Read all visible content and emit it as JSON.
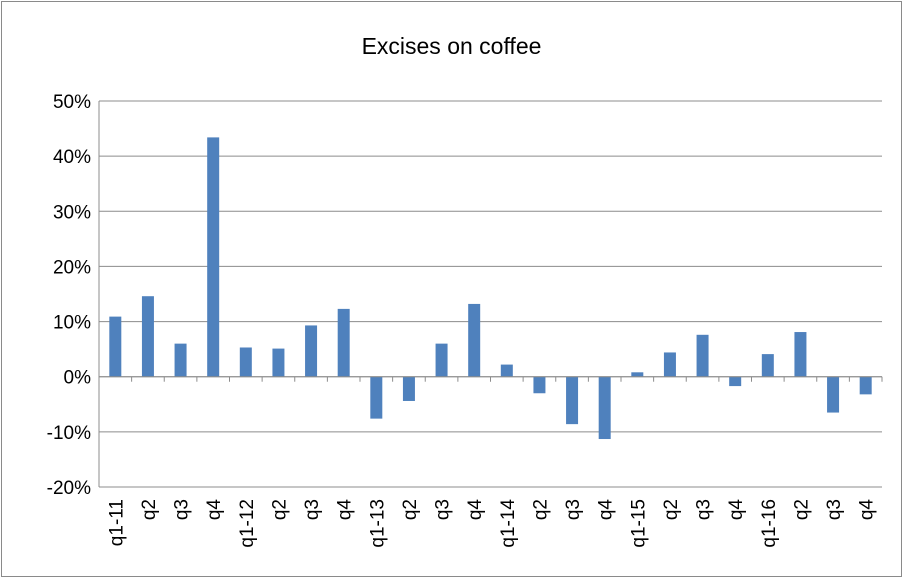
{
  "chart_data": {
    "type": "bar",
    "title": "Excises on coffee",
    "xlabel": "",
    "ylabel": "",
    "ylim": [
      -0.2,
      0.5
    ],
    "yticks": [
      -0.2,
      -0.1,
      0.0,
      0.1,
      0.2,
      0.3,
      0.4,
      0.5
    ],
    "ytick_labels": [
      "-20%",
      "-10%",
      "0%",
      "10%",
      "20%",
      "30%",
      "40%",
      "50%"
    ],
    "grid": true,
    "legend": "none",
    "bar_color": "#4F81BD",
    "categories": [
      "q1-11",
      "q2",
      "q3",
      "q4",
      "q1-12",
      "q2",
      "q3",
      "q4",
      "q1-13",
      "q2",
      "q3",
      "q4",
      "q1-14",
      "q2",
      "q3",
      "q4",
      "q1-15",
      "q2",
      "q3",
      "q4",
      "q1-16",
      "q2",
      "q3",
      "q4"
    ],
    "values": [
      0.109,
      0.146,
      0.06,
      0.434,
      0.053,
      0.051,
      0.093,
      0.123,
      -0.076,
      -0.044,
      0.06,
      0.132,
      0.022,
      -0.03,
      -0.086,
      -0.113,
      0.008,
      0.044,
      0.076,
      -0.017,
      0.041,
      0.081,
      -0.065,
      -0.032
    ]
  }
}
